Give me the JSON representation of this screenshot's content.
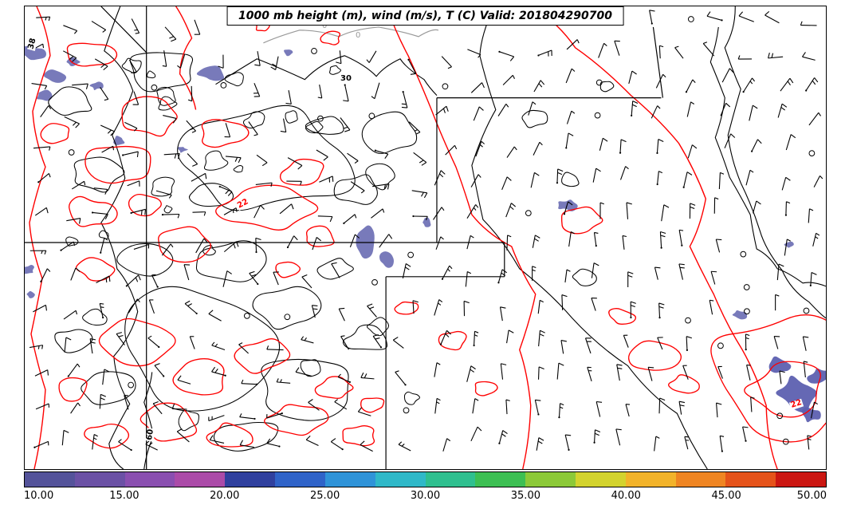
{
  "title": {
    "text": "1000 mb height (m), wind (m/s), T (C) Valid: 201804290700"
  },
  "colors": {
    "height_contour": "#000000",
    "temperature_contour": "#fe0000",
    "zero_contour": "#9a9a9a",
    "shading_fill": "#7173b6",
    "shading_fill_dark": "#5d60b0",
    "map_border": "#000000",
    "background": "#ffffff"
  },
  "colorbar": {
    "min": 10,
    "max": 50,
    "ticks": [
      "10.00",
      "15.00",
      "20.00",
      "25.00",
      "30.00",
      "35.00",
      "40.00",
      "45.00",
      "50.00"
    ],
    "segment_colors": [
      "#54539a",
      "#6b51a5",
      "#8a4fb0",
      "#ab4ba8",
      "#30409e",
      "#2f63c8",
      "#2f93d8",
      "#2fb8c8",
      "#2fbf8f",
      "#3dbf53",
      "#8cc938",
      "#d3d32e",
      "#f2b32a",
      "#ef8522",
      "#e5531a",
      "#cb1712"
    ]
  },
  "contour_labels": [
    {
      "text": "38",
      "type": "height"
    },
    {
      "text": "30",
      "type": "height"
    },
    {
      "text": "60",
      "type": "height"
    },
    {
      "text": "0",
      "type": "zero"
    },
    {
      "text": "0",
      "type": "zero"
    },
    {
      "text": "22",
      "type": "temperature"
    },
    {
      "text": "22",
      "type": "temperature"
    }
  ]
}
